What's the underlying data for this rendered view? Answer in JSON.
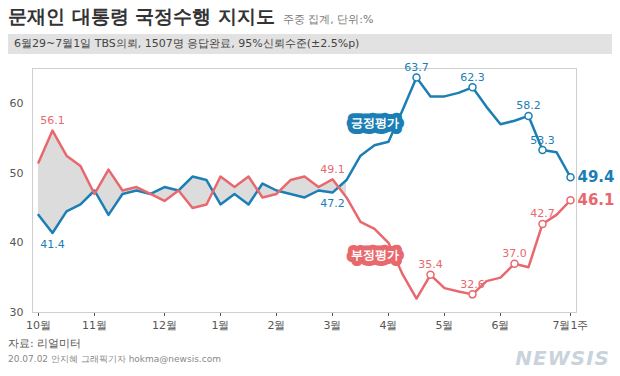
{
  "chart_data": {
    "type": "line",
    "title": "문재인 대통령 국정수행 지지도",
    "unit_note": "주중 집계, 단위:%",
    "subtitle": "6월29~7월1일 TBS의뢰, 1507명 응답완료, 95%신뢰수준(±2.5%p)",
    "source": "자료: 리얼미터",
    "credit": "20.07.02 안지혜 그래픽기자 hokma@newsis.com",
    "watermark": "NEWSIS",
    "categories": [
      "10월",
      null,
      null,
      null,
      "11월",
      null,
      null,
      null,
      null,
      "12월",
      null,
      null,
      null,
      "1월",
      null,
      null,
      null,
      "2월",
      null,
      null,
      null,
      "3월",
      null,
      null,
      null,
      "4월",
      null,
      null,
      null,
      "5월",
      null,
      null,
      null,
      "6월",
      null,
      null,
      null,
      null,
      "7월1주"
    ],
    "series": [
      {
        "name": "긍정평가",
        "color": "#1b7fb5",
        "values": [
          44.0,
          41.4,
          44.5,
          45.5,
          47.5,
          44.0,
          47.0,
          47.5,
          47.0,
          48.0,
          47.5,
          49.5,
          49.0,
          45.5,
          47.0,
          45.5,
          48.5,
          47.5,
          47.0,
          46.5,
          47.5,
          47.2,
          49.0,
          52.5,
          54.0,
          54.5,
          59.0,
          63.7,
          61.0,
          61.0,
          61.5,
          62.3,
          59.5,
          57.0,
          57.5,
          58.2,
          53.3,
          53.0,
          49.4
        ],
        "value_labels": [
          null,
          "41.4",
          null,
          null,
          null,
          null,
          null,
          null,
          null,
          null,
          null,
          null,
          null,
          null,
          null,
          null,
          null,
          null,
          null,
          null,
          null,
          "47.2",
          null,
          null,
          null,
          null,
          null,
          "63.7",
          null,
          null,
          null,
          "62.3",
          null,
          null,
          null,
          "58.2",
          "53.3",
          null,
          "49.4"
        ]
      },
      {
        "name": "부정평가",
        "color": "#e8686e",
        "values": [
          51.5,
          56.1,
          52.5,
          51.0,
          47.0,
          50.5,
          47.5,
          48.0,
          47.0,
          46.0,
          47.5,
          45.0,
          45.5,
          49.5,
          48.0,
          49.5,
          46.5,
          47.0,
          49.0,
          49.5,
          48.0,
          49.1,
          46.5,
          43.0,
          42.0,
          40.0,
          35.5,
          32.0,
          35.4,
          33.5,
          33.0,
          32.6,
          34.5,
          35.0,
          37.0,
          36.5,
          42.7,
          44.0,
          46.1
        ],
        "value_labels": [
          null,
          "56.1",
          null,
          null,
          null,
          null,
          null,
          null,
          null,
          null,
          null,
          null,
          null,
          null,
          null,
          null,
          null,
          null,
          null,
          null,
          null,
          "49.1",
          null,
          null,
          null,
          null,
          null,
          null,
          "35.4",
          null,
          null,
          "32.6",
          null,
          null,
          "37.0",
          null,
          "42.7",
          null,
          "46.1"
        ]
      }
    ],
    "ylim": [
      30,
      65
    ],
    "yticks": [
      30,
      40,
      50,
      60
    ],
    "grid": false
  }
}
